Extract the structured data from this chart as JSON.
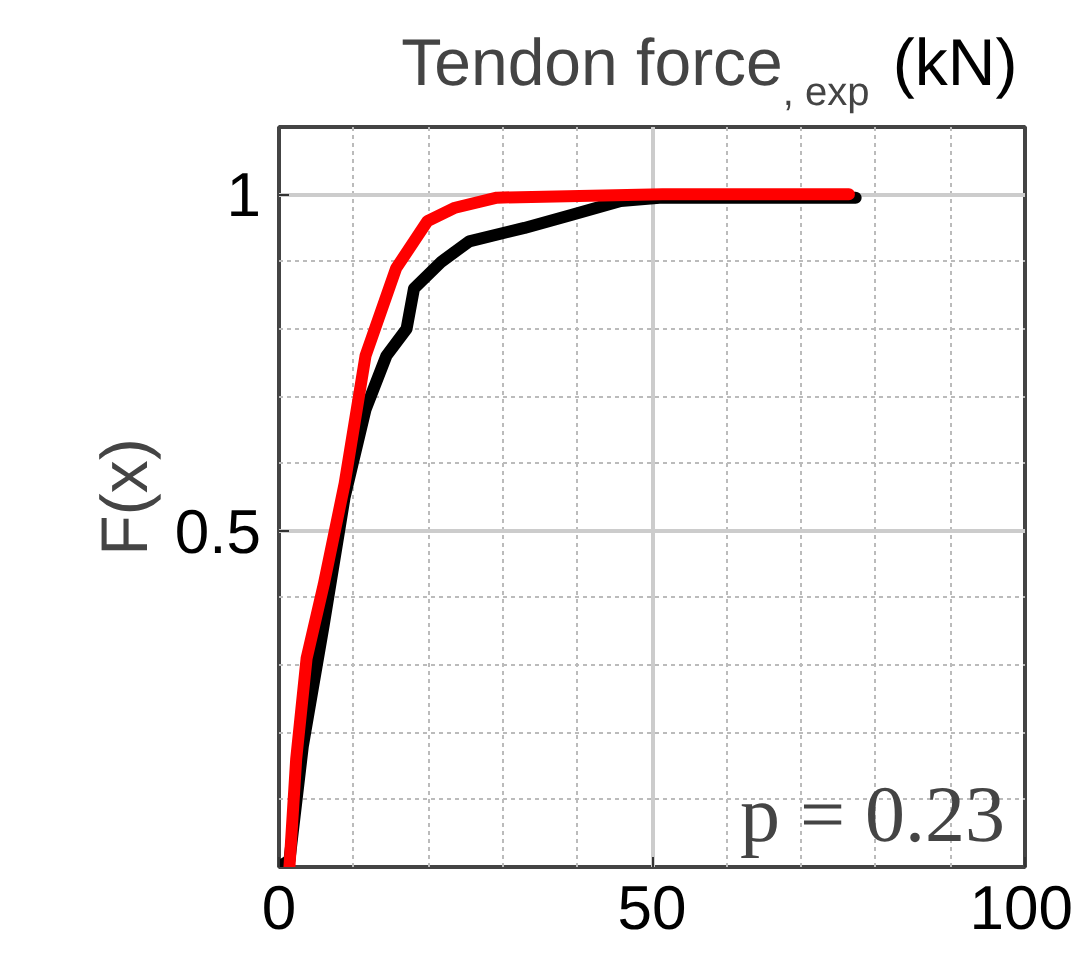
{
  "chart_data": {
    "type": "line",
    "title": "Tendon force$_{, exp}$ (kN)",
    "ylabel": "F(x)",
    "xlim": [
      0,
      100
    ],
    "ylim": [
      0,
      1.1
    ],
    "xticks": [
      0,
      50,
      100
    ],
    "yticks": [
      0.5,
      1
    ],
    "grid": true,
    "marker": "none",
    "line_style": "solid",
    "annotations": [
      "p = 0.23"
    ],
    "series": [
      {
        "color": "#000000",
        "x": [
          0,
          1.4,
          3.2,
          6.0,
          8.8,
          11.6,
          14.4,
          17.1,
          18.1,
          21.8,
          25.5,
          32.9,
          39.4,
          45.8,
          51.4,
          77.3
        ],
        "values": [
          0,
          0.01,
          0.18,
          0.36,
          0.55,
          0.68,
          0.76,
          0.8,
          0.86,
          0.9,
          0.93,
          0.95,
          0.97,
          0.99,
          0.995,
          0.995
        ]
      },
      {
        "color": "#ff0000",
        "x": [
          1.4,
          2.3,
          3.7,
          6.0,
          8.8,
          11.6,
          15.7,
          19.9,
          23.6,
          29.2,
          51.4,
          76.4
        ],
        "values": [
          0,
          0.16,
          0.31,
          0.42,
          0.57,
          0.76,
          0.89,
          0.96,
          0.98,
          0.995,
          1.0,
          1.0
        ]
      }
    ]
  }
}
